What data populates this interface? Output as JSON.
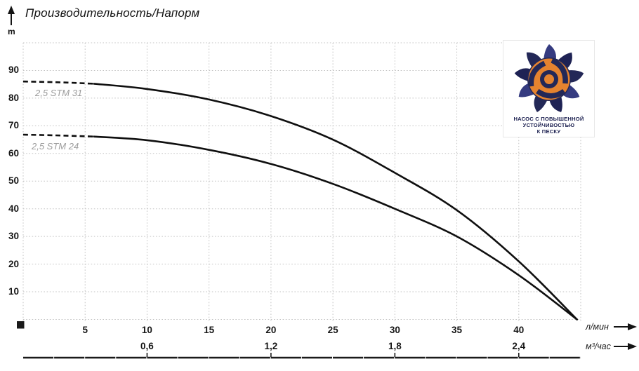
{
  "header": {
    "title": "Производительность/Напорм",
    "y_unit_label": "m"
  },
  "axis_units": {
    "primary": "л/мин",
    "secondary": "м³/час"
  },
  "badge": {
    "lines": [
      "НАСОС С ПОВЫШЕННОЙ",
      "УСТОЙЧИВОСТЬЮ",
      "К ПЕСКУ"
    ]
  },
  "colors": {
    "curve": "#0f0f0f",
    "grid": "#c3c3c3",
    "axis": "#1a1a1a",
    "curve_label_gray": "#9c9c9c",
    "badge_navy": "#232857",
    "badge_navy_light": "#353b80",
    "badge_navy_dark": "#1e2254",
    "badge_orange": "#e5832f"
  },
  "chart_data": {
    "type": "line",
    "title": "Производительность/Напорм",
    "grid": true,
    "y_axis": {
      "unit": "m",
      "min": 0,
      "max": 100,
      "ticks": [
        10,
        20,
        30,
        40,
        50,
        60,
        70,
        80,
        90
      ]
    },
    "x_axis_primary": {
      "unit": "л/мин",
      "min": 0,
      "max": 45,
      "ticks": [
        5,
        10,
        15,
        20,
        25,
        30,
        35,
        40
      ]
    },
    "x_axis_secondary": {
      "unit": "м³/час",
      "ticks": [
        {
          "flow_lmin": 10,
          "label": "0,6"
        },
        {
          "flow_lmin": 20,
          "label": "1,2"
        },
        {
          "flow_lmin": 30,
          "label": "1,8"
        },
        {
          "flow_lmin": 40,
          "label": "2,4"
        }
      ]
    },
    "series": [
      {
        "name": "2,5 STM 31",
        "dashed_until_flow": 5.7,
        "points": [
          [
            0,
            86
          ],
          [
            3,
            85.7
          ],
          [
            5.7,
            85.2
          ],
          [
            10,
            83.3
          ],
          [
            15,
            79.5
          ],
          [
            20,
            73.5
          ],
          [
            25,
            65
          ],
          [
            30,
            53
          ],
          [
            35,
            39.5
          ],
          [
            40,
            21
          ],
          [
            44.7,
            0
          ]
        ]
      },
      {
        "name": "2,5 STM 24",
        "dashed_until_flow": 5.7,
        "points": [
          [
            0,
            66.8
          ],
          [
            3,
            66.5
          ],
          [
            5.7,
            66.1
          ],
          [
            10,
            64.8
          ],
          [
            15,
            61.3
          ],
          [
            20,
            56.2
          ],
          [
            25,
            49
          ],
          [
            30,
            40
          ],
          [
            35,
            30
          ],
          [
            40,
            16
          ],
          [
            44.7,
            0
          ]
        ]
      }
    ]
  }
}
